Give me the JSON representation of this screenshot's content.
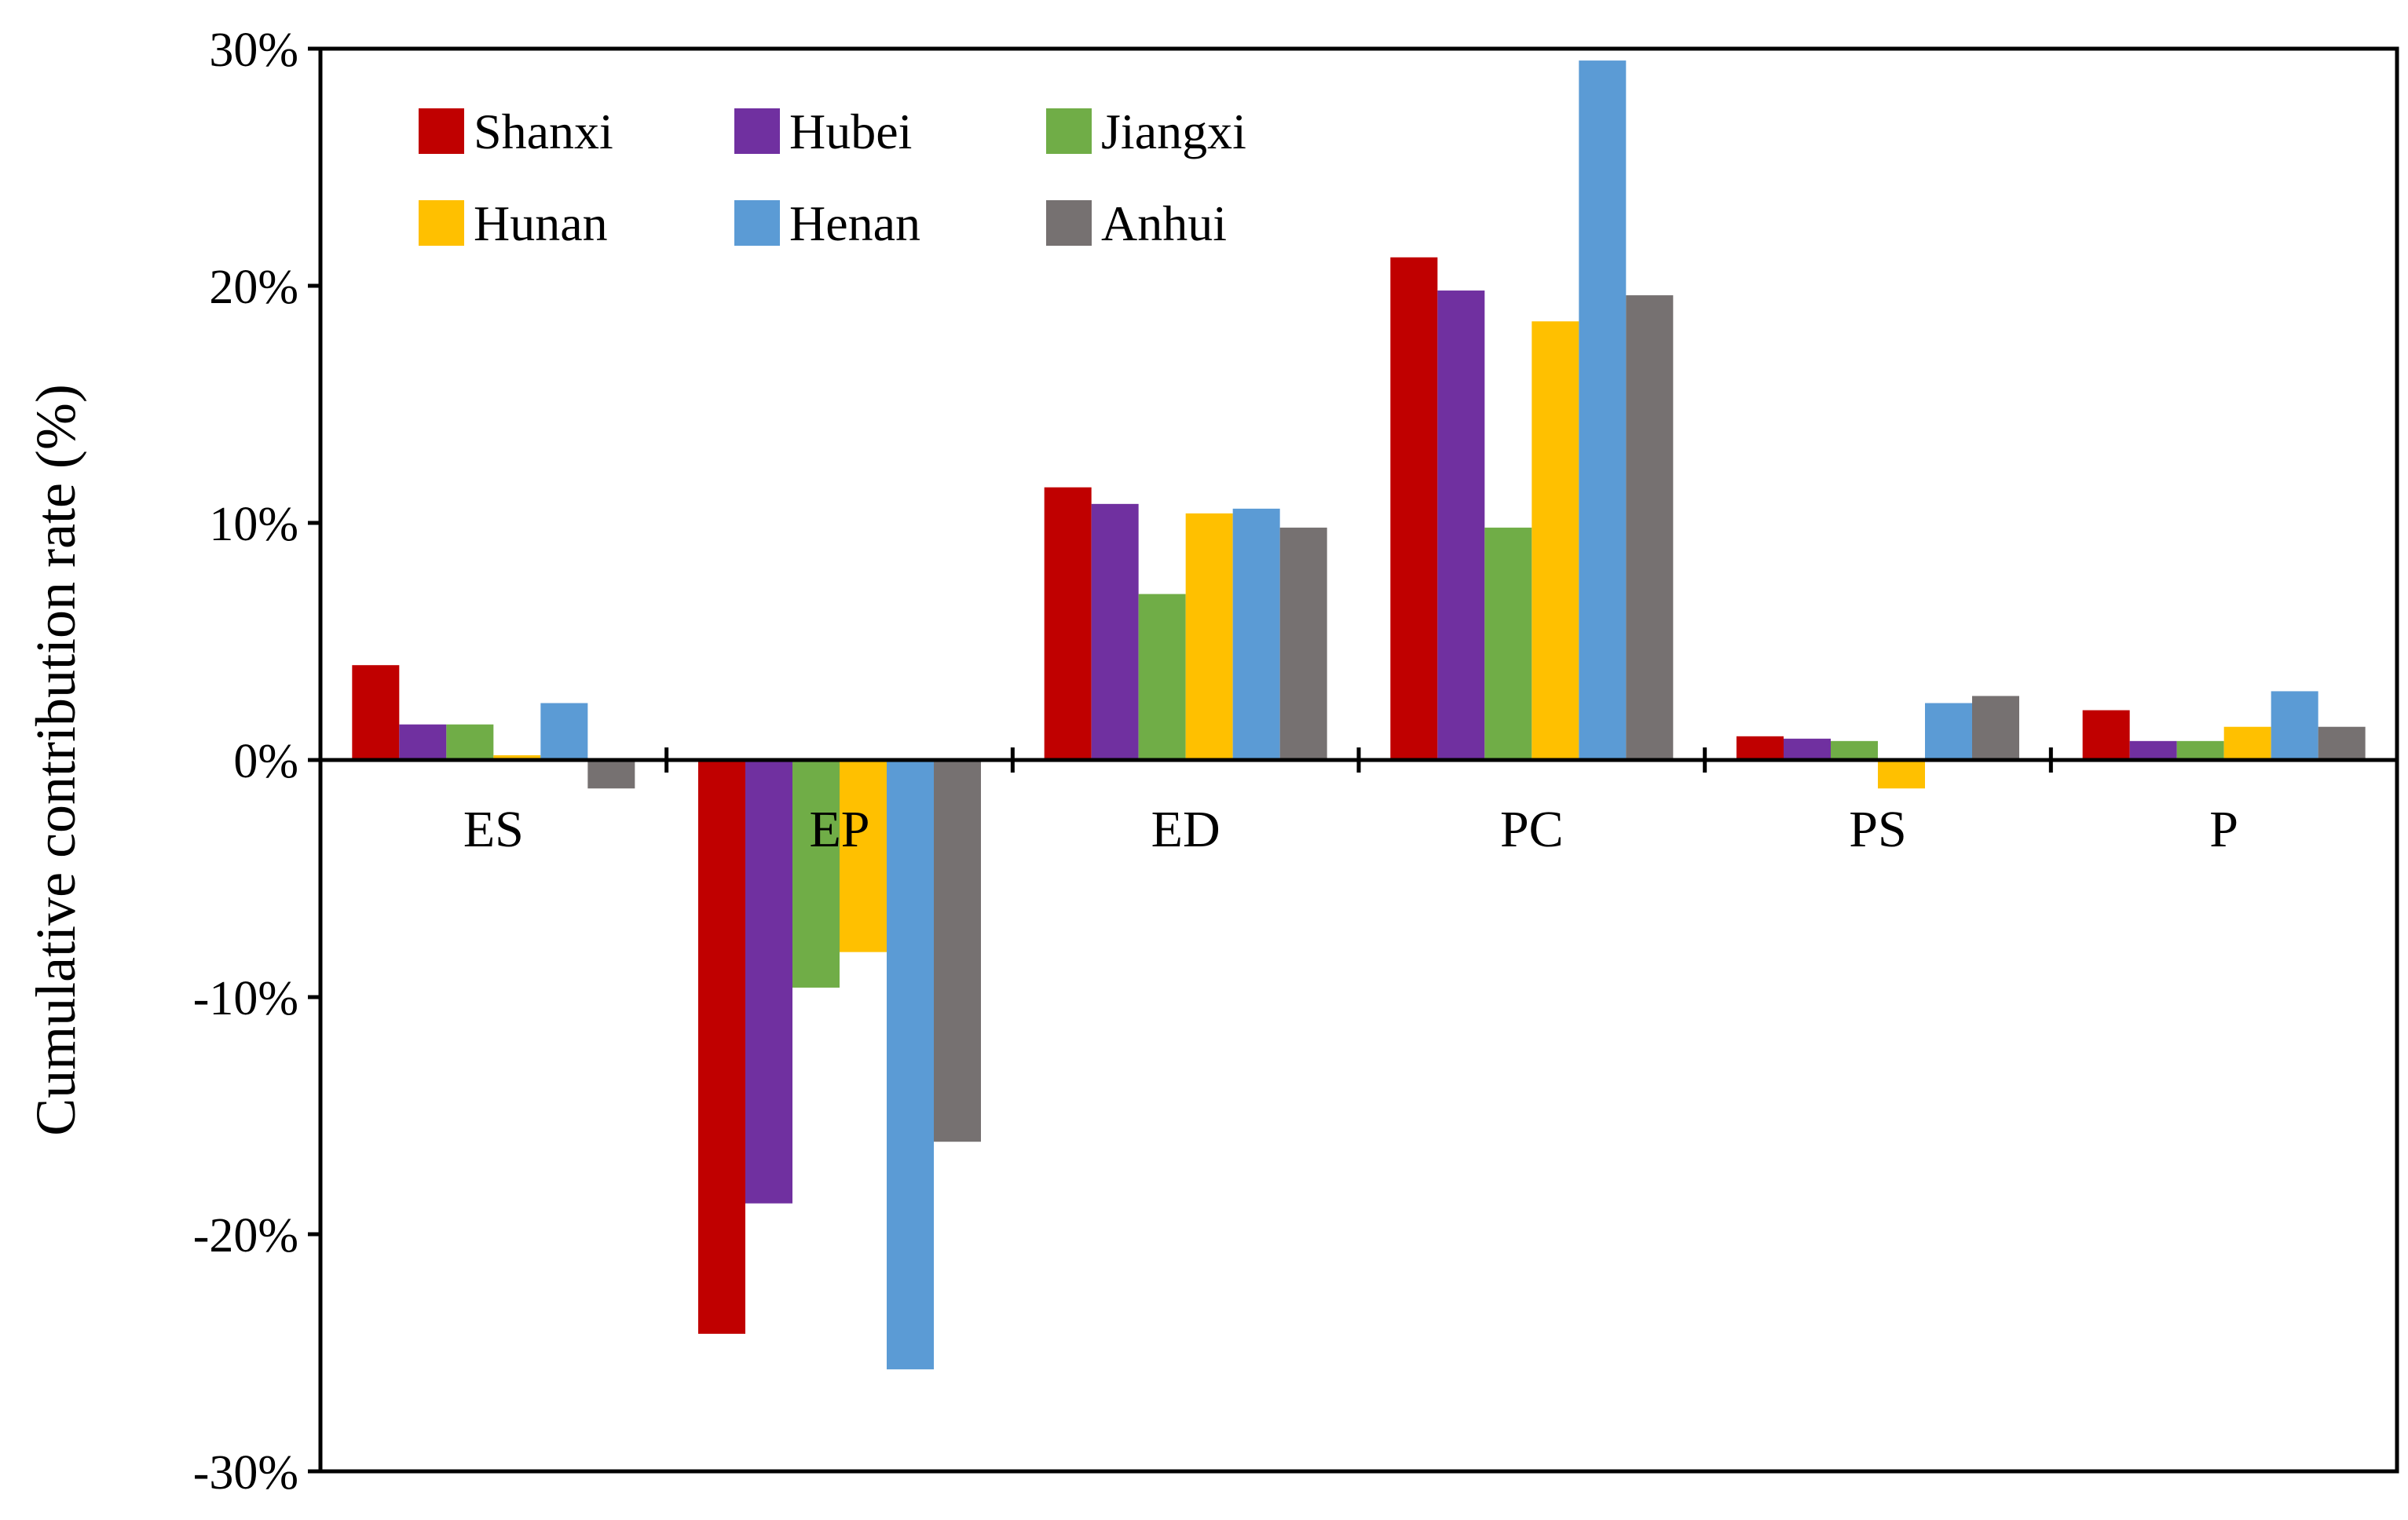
{
  "chart_data": {
    "type": "bar",
    "title": "",
    "xlabel": "",
    "ylabel": "Cumulative contribution rate (%)",
    "ylim": [
      -30,
      30
    ],
    "yticks": [
      -30,
      -20,
      -10,
      0,
      10,
      20,
      30
    ],
    "ytick_labels": [
      "-30%",
      "-20%",
      "-10%",
      "0%",
      "10%",
      "20%",
      "30%"
    ],
    "grid": false,
    "legend_position": "top-left",
    "categories": [
      "ES",
      "EP",
      "ED",
      "PC",
      "PS",
      "P"
    ],
    "series": [
      {
        "name": "Shanxi",
        "color": "#C00000",
        "values": [
          4.0,
          -24.2,
          11.5,
          21.2,
          1.0,
          2.1
        ]
      },
      {
        "name": "Hubei",
        "color": "#7030A0",
        "values": [
          1.5,
          -18.7,
          10.8,
          19.8,
          0.9,
          0.8
        ]
      },
      {
        "name": "Jiangxi",
        "color": "#70AD47",
        "values": [
          1.5,
          -9.6,
          7.0,
          9.8,
          0.8,
          0.8
        ]
      },
      {
        "name": "Hunan",
        "color": "#FFC000",
        "values": [
          0.2,
          -8.1,
          10.4,
          18.5,
          -1.2,
          1.4
        ]
      },
      {
        "name": "Henan",
        "color": "#5B9BD5",
        "values": [
          2.4,
          -25.7,
          10.6,
          29.5,
          2.4,
          2.9
        ]
      },
      {
        "name": "Anhui",
        "color": "#767171",
        "values": [
          -1.2,
          -16.1,
          9.8,
          19.6,
          2.7,
          1.4
        ]
      }
    ]
  }
}
